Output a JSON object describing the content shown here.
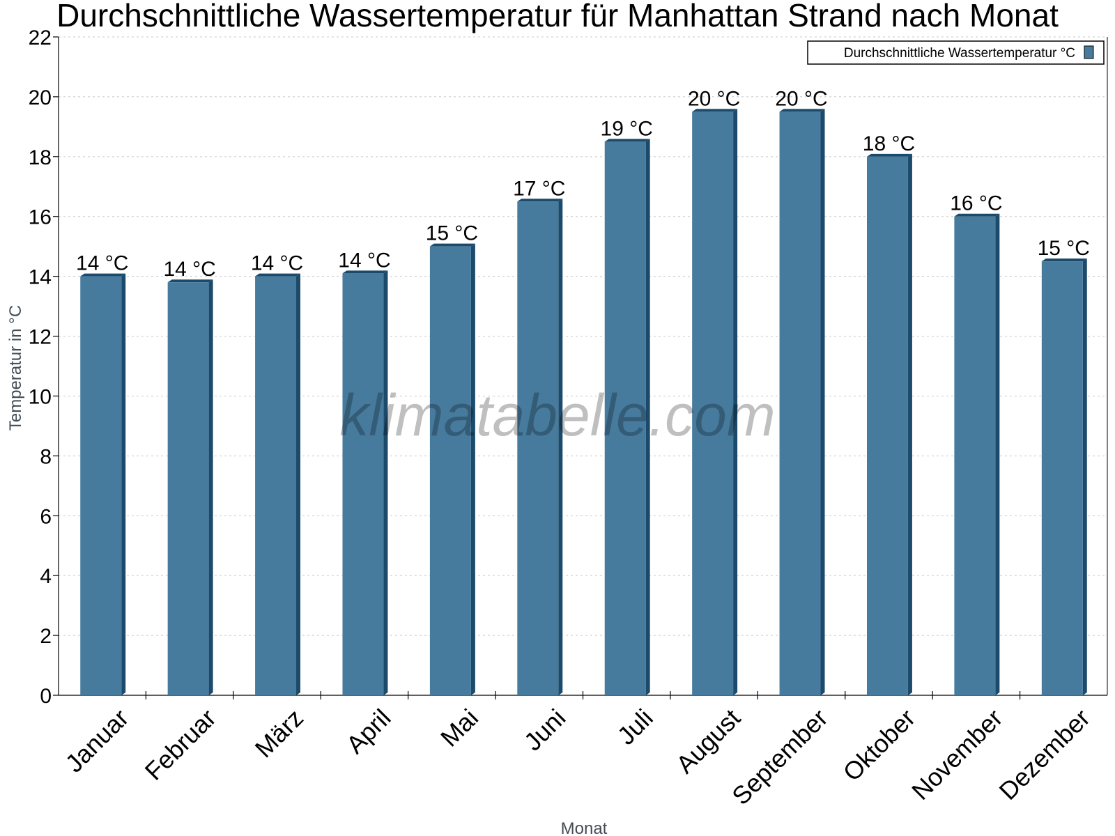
{
  "chart_data": {
    "type": "bar",
    "title": "Durchschnittliche Wassertemperatur für Manhattan Strand nach Monat",
    "xlabel": "Monat",
    "ylabel": "Temperatur in °C",
    "ylim": [
      0,
      22
    ],
    "yticks": [
      0,
      2,
      4,
      6,
      8,
      10,
      12,
      14,
      16,
      18,
      20,
      22
    ],
    "grid": true,
    "legend_position": "top-right",
    "categories": [
      "Januar",
      "Februar",
      "März",
      "April",
      "Mai",
      "Juni",
      "Juli",
      "August",
      "September",
      "Oktober",
      "November",
      "Dezember"
    ],
    "series": [
      {
        "name": "Durchschnittliche Wassertemperatur °C",
        "values": [
          14.0,
          13.8,
          14.0,
          14.1,
          15.0,
          16.5,
          18.5,
          19.5,
          19.5,
          18.0,
          16.0,
          14.5
        ],
        "labels": [
          "14 °C",
          "14 °C",
          "14 °C",
          "14 °C",
          "15 °C",
          "17 °C",
          "19 °C",
          "20 °C",
          "20 °C",
          "18 °C",
          "16 °C",
          "15 °C"
        ],
        "color": "#467b9e",
        "edge_color": "#1c4a6b"
      }
    ],
    "watermark": "klimatabelle.com"
  }
}
